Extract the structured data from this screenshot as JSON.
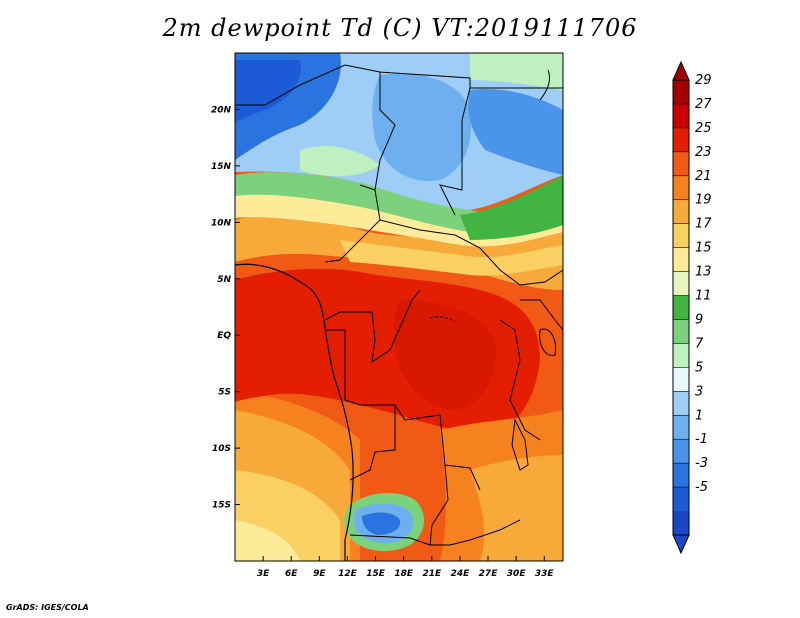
{
  "title": "2m dewpoint Td (C) VT:2019111706",
  "credit": "GrADS: IGES/COLA",
  "map": {
    "lat_labels": [
      "20N",
      "15N",
      "10N",
      "5N",
      "EQ",
      "5S",
      "10S",
      "15S"
    ],
    "lat_values": [
      20,
      15,
      10,
      5,
      0,
      -5,
      -10,
      -15
    ],
    "lon_labels": [
      "3E",
      "6E",
      "9E",
      "12E",
      "15E",
      "18E",
      "21E",
      "24E",
      "27E",
      "30E",
      "33E"
    ],
    "lon_values": [
      3,
      6,
      9,
      12,
      15,
      18,
      21,
      24,
      27,
      30,
      33
    ],
    "extent": {
      "lon_min": 0,
      "lon_max": 35,
      "lat_min": -20,
      "lat_max": 25
    }
  },
  "colorbar": {
    "labels": [
      "29",
      "27",
      "25",
      "23",
      "21",
      "19",
      "17",
      "15",
      "13",
      "11",
      "9",
      "7",
      "5",
      "3",
      "1",
      "-1",
      "-3",
      "-5"
    ],
    "colors": [
      "#a50000",
      "#c80000",
      "#e41e00",
      "#f05a14",
      "#f5821e",
      "#f7a93a",
      "#fbd062",
      "#fdeb9a",
      "#e6f5c0",
      "#41b441",
      "#7cd27c",
      "#bff0bf",
      "#e8f8ff",
      "#9ecef5",
      "#6eb0ef",
      "#4a94ea",
      "#2a74df",
      "#1d5ad6",
      "#1a46c8"
    ]
  },
  "colors": {
    "frame": "#000000",
    "background": "#ffffff"
  }
}
